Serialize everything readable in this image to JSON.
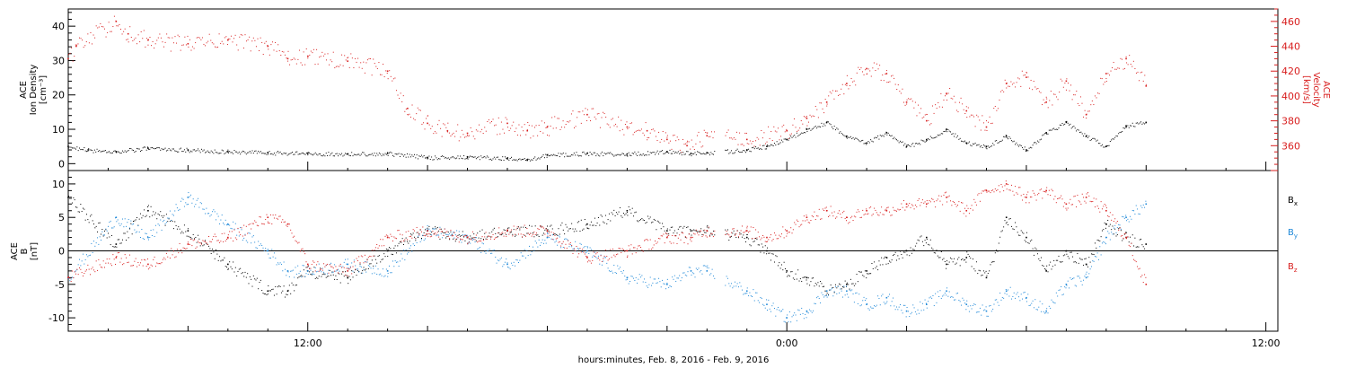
{
  "chart_data": [
    {
      "type": "scatter",
      "panel": "top",
      "ylabel_left": [
        "ACE",
        "Ion Density",
        "[cm⁻³]"
      ],
      "ylabel_right": [
        "ACE",
        "Velocity",
        "[km/s]"
      ],
      "ylim_left": [
        -2,
        45
      ],
      "ylim_right": [
        340,
        470
      ],
      "yticks_left": [
        0,
        10,
        20,
        30,
        40
      ],
      "yticks_right": [
        360,
        380,
        400,
        420,
        440,
        460
      ],
      "colors": {
        "density": "#000000",
        "velocity": "#d81e1e"
      },
      "x_hours_range": [
        6.0,
        36.3
      ],
      "series": [
        {
          "axis": "left",
          "color": "#000000",
          "x": [
            6.0,
            6.5,
            7.2,
            8.0,
            9.0,
            10.0,
            11.0,
            12.0,
            13.0,
            14.0,
            15.0,
            16.0,
            17.0,
            17.5,
            18.0,
            19.0,
            20.0,
            21.0,
            21.6,
            22.0,
            23.0,
            23.5,
            24.0,
            24.5,
            25.0,
            25.5,
            26.0,
            26.5,
            27.0,
            27.5,
            28.0,
            28.5,
            29.0,
            29.5,
            30.0,
            30.5,
            31.0,
            31.5,
            32.0,
            32.5,
            33.0
          ],
          "y": [
            5,
            4,
            3.5,
            4.5,
            4.0,
            3.5,
            3.2,
            3.0,
            2.8,
            3.0,
            1.8,
            2.0,
            1.5,
            1.0,
            2.5,
            3.0,
            2.8,
            3.5,
            3.0,
            3.2,
            4.0,
            5.0,
            7.0,
            10.0,
            12.0,
            8.0,
            6.0,
            9.0,
            5.0,
            7.0,
            10.0,
            6.0,
            5.0,
            8.0,
            4.0,
            9.0,
            12.0,
            8.0,
            5.0,
            11.0,
            12.0
          ]
        },
        {
          "axis": "right",
          "color": "#d81e1e",
          "x": [
            6.0,
            6.2,
            7.2,
            7.5,
            8.0,
            9.0,
            10.0,
            11.0,
            11.5,
            12.0,
            13.0,
            14.0,
            14.5,
            15.0,
            15.5,
            16.0,
            17.0,
            17.5,
            18.0,
            19.0,
            20.0,
            20.5,
            21.0,
            21.5,
            22.0,
            23.0,
            24.0,
            24.5,
            25.0,
            25.5,
            26.0,
            26.5,
            27.0,
            27.5,
            28.0,
            28.5,
            29.0,
            29.5,
            30.0,
            30.5,
            31.0,
            31.5,
            32.0,
            32.5,
            33.0
          ],
          "y": [
            430,
            440,
            460,
            450,
            445,
            442,
            445,
            440,
            430,
            432,
            428,
            420,
            390,
            378,
            372,
            370,
            378,
            372,
            375,
            385,
            375,
            372,
            365,
            360,
            368,
            365,
            372,
            382,
            395,
            410,
            422,
            418,
            395,
            380,
            402,
            388,
            375,
            410,
            415,
            395,
            412,
            385,
            418,
            430,
            408
          ]
        }
      ]
    },
    {
      "type": "scatter",
      "panel": "bottom",
      "ylabel_left": [
        "ACE",
        "B",
        "[nT]"
      ],
      "ylim": [
        -12,
        12
      ],
      "yticks": [
        -10,
        -5,
        0,
        5,
        10
      ],
      "legend": [
        {
          "text": "B",
          "sub": "x",
          "color": "#000000"
        },
        {
          "text": "B",
          "sub": "y",
          "color": "#1e88d8"
        },
        {
          "text": "B",
          "sub": "z",
          "color": "#d81e1e"
        }
      ],
      "x_hours_range": [
        6.0,
        36.3
      ],
      "series": [
        {
          "name": "Bx",
          "color": "#000000",
          "x": [
            6.0,
            7.2,
            8.0,
            9.0,
            10.0,
            11.0,
            11.5,
            12.0,
            13.0,
            14.0,
            15.0,
            16.0,
            17.0,
            18.0,
            19.0,
            20.0,
            21.0,
            21.6,
            22.0,
            23.0,
            23.5,
            24.0,
            24.5,
            25.0,
            25.5,
            26.0,
            26.5,
            27.0,
            27.5,
            28.0,
            28.5,
            29.0,
            29.5,
            30.0,
            30.5,
            31.0,
            31.5,
            32.0,
            32.5,
            33.0
          ],
          "y": [
            8,
            1,
            6,
            3,
            -2,
            -6,
            -6,
            -3,
            -4,
            0,
            3,
            2,
            3,
            3,
            4,
            6,
            3,
            3,
            3,
            2,
            0,
            -3,
            -4,
            -6,
            -5,
            -3,
            -1,
            0,
            2,
            -2,
            -1,
            -4,
            5,
            2,
            -3,
            0,
            -2,
            4,
            2,
            1
          ]
        },
        {
          "name": "By",
          "color": "#1e88d8",
          "x": [
            6.0,
            7.2,
            8.0,
            9.0,
            10.0,
            11.0,
            11.5,
            12.0,
            13.0,
            14.0,
            15.0,
            16.0,
            17.0,
            18.0,
            19.0,
            20.0,
            21.0,
            21.6,
            22.0,
            23.0,
            23.5,
            24.0,
            24.5,
            25.0,
            25.5,
            26.0,
            26.5,
            27.0,
            27.5,
            28.0,
            28.5,
            29.0,
            29.5,
            30.0,
            30.5,
            31.0,
            31.5,
            32.0,
            32.5,
            33.0
          ],
          "y": [
            -4,
            5,
            2,
            8,
            4,
            0,
            -3,
            -3,
            -2,
            -3,
            3,
            2,
            -2,
            2,
            0,
            -4,
            -5,
            -3,
            -3,
            -6,
            -8,
            -10,
            -9,
            -6,
            -6,
            -8,
            -7,
            -9,
            -8,
            -6,
            -8,
            -9,
            -6,
            -7,
            -9,
            -5,
            -4,
            2,
            5,
            7
          ]
        },
        {
          "name": "Bz",
          "color": "#d81e1e",
          "x": [
            6.0,
            7.2,
            8.0,
            9.0,
            10.0,
            11.0,
            11.5,
            12.0,
            13.0,
            14.0,
            15.0,
            16.0,
            17.0,
            18.0,
            19.0,
            20.0,
            21.0,
            21.6,
            22.0,
            23.0,
            23.5,
            24.0,
            24.5,
            25.0,
            25.5,
            26.0,
            26.5,
            27.0,
            27.5,
            28.0,
            28.5,
            29.0,
            29.5,
            30.0,
            30.5,
            31.0,
            31.5,
            32.0,
            32.5,
            33.0
          ],
          "y": [
            -4,
            -1,
            -2,
            1,
            2,
            5,
            4,
            -2,
            -3,
            2,
            3,
            2,
            3,
            3,
            -1,
            0,
            2,
            2,
            3,
            3,
            2,
            3,
            5,
            6,
            5,
            6,
            6,
            7,
            7,
            8,
            6,
            9,
            10,
            8,
            9,
            7,
            8,
            6,
            2,
            -5
          ]
        }
      ]
    }
  ],
  "xaxis": {
    "tick_labels": [
      {
        "hour": 12,
        "text": "12:00"
      },
      {
        "hour": 24,
        "text": "0:00"
      },
      {
        "hour": 36,
        "text": "12:00"
      }
    ],
    "label": "hours:minutes, Feb.  8, 2016 - Feb.  9, 2016"
  }
}
